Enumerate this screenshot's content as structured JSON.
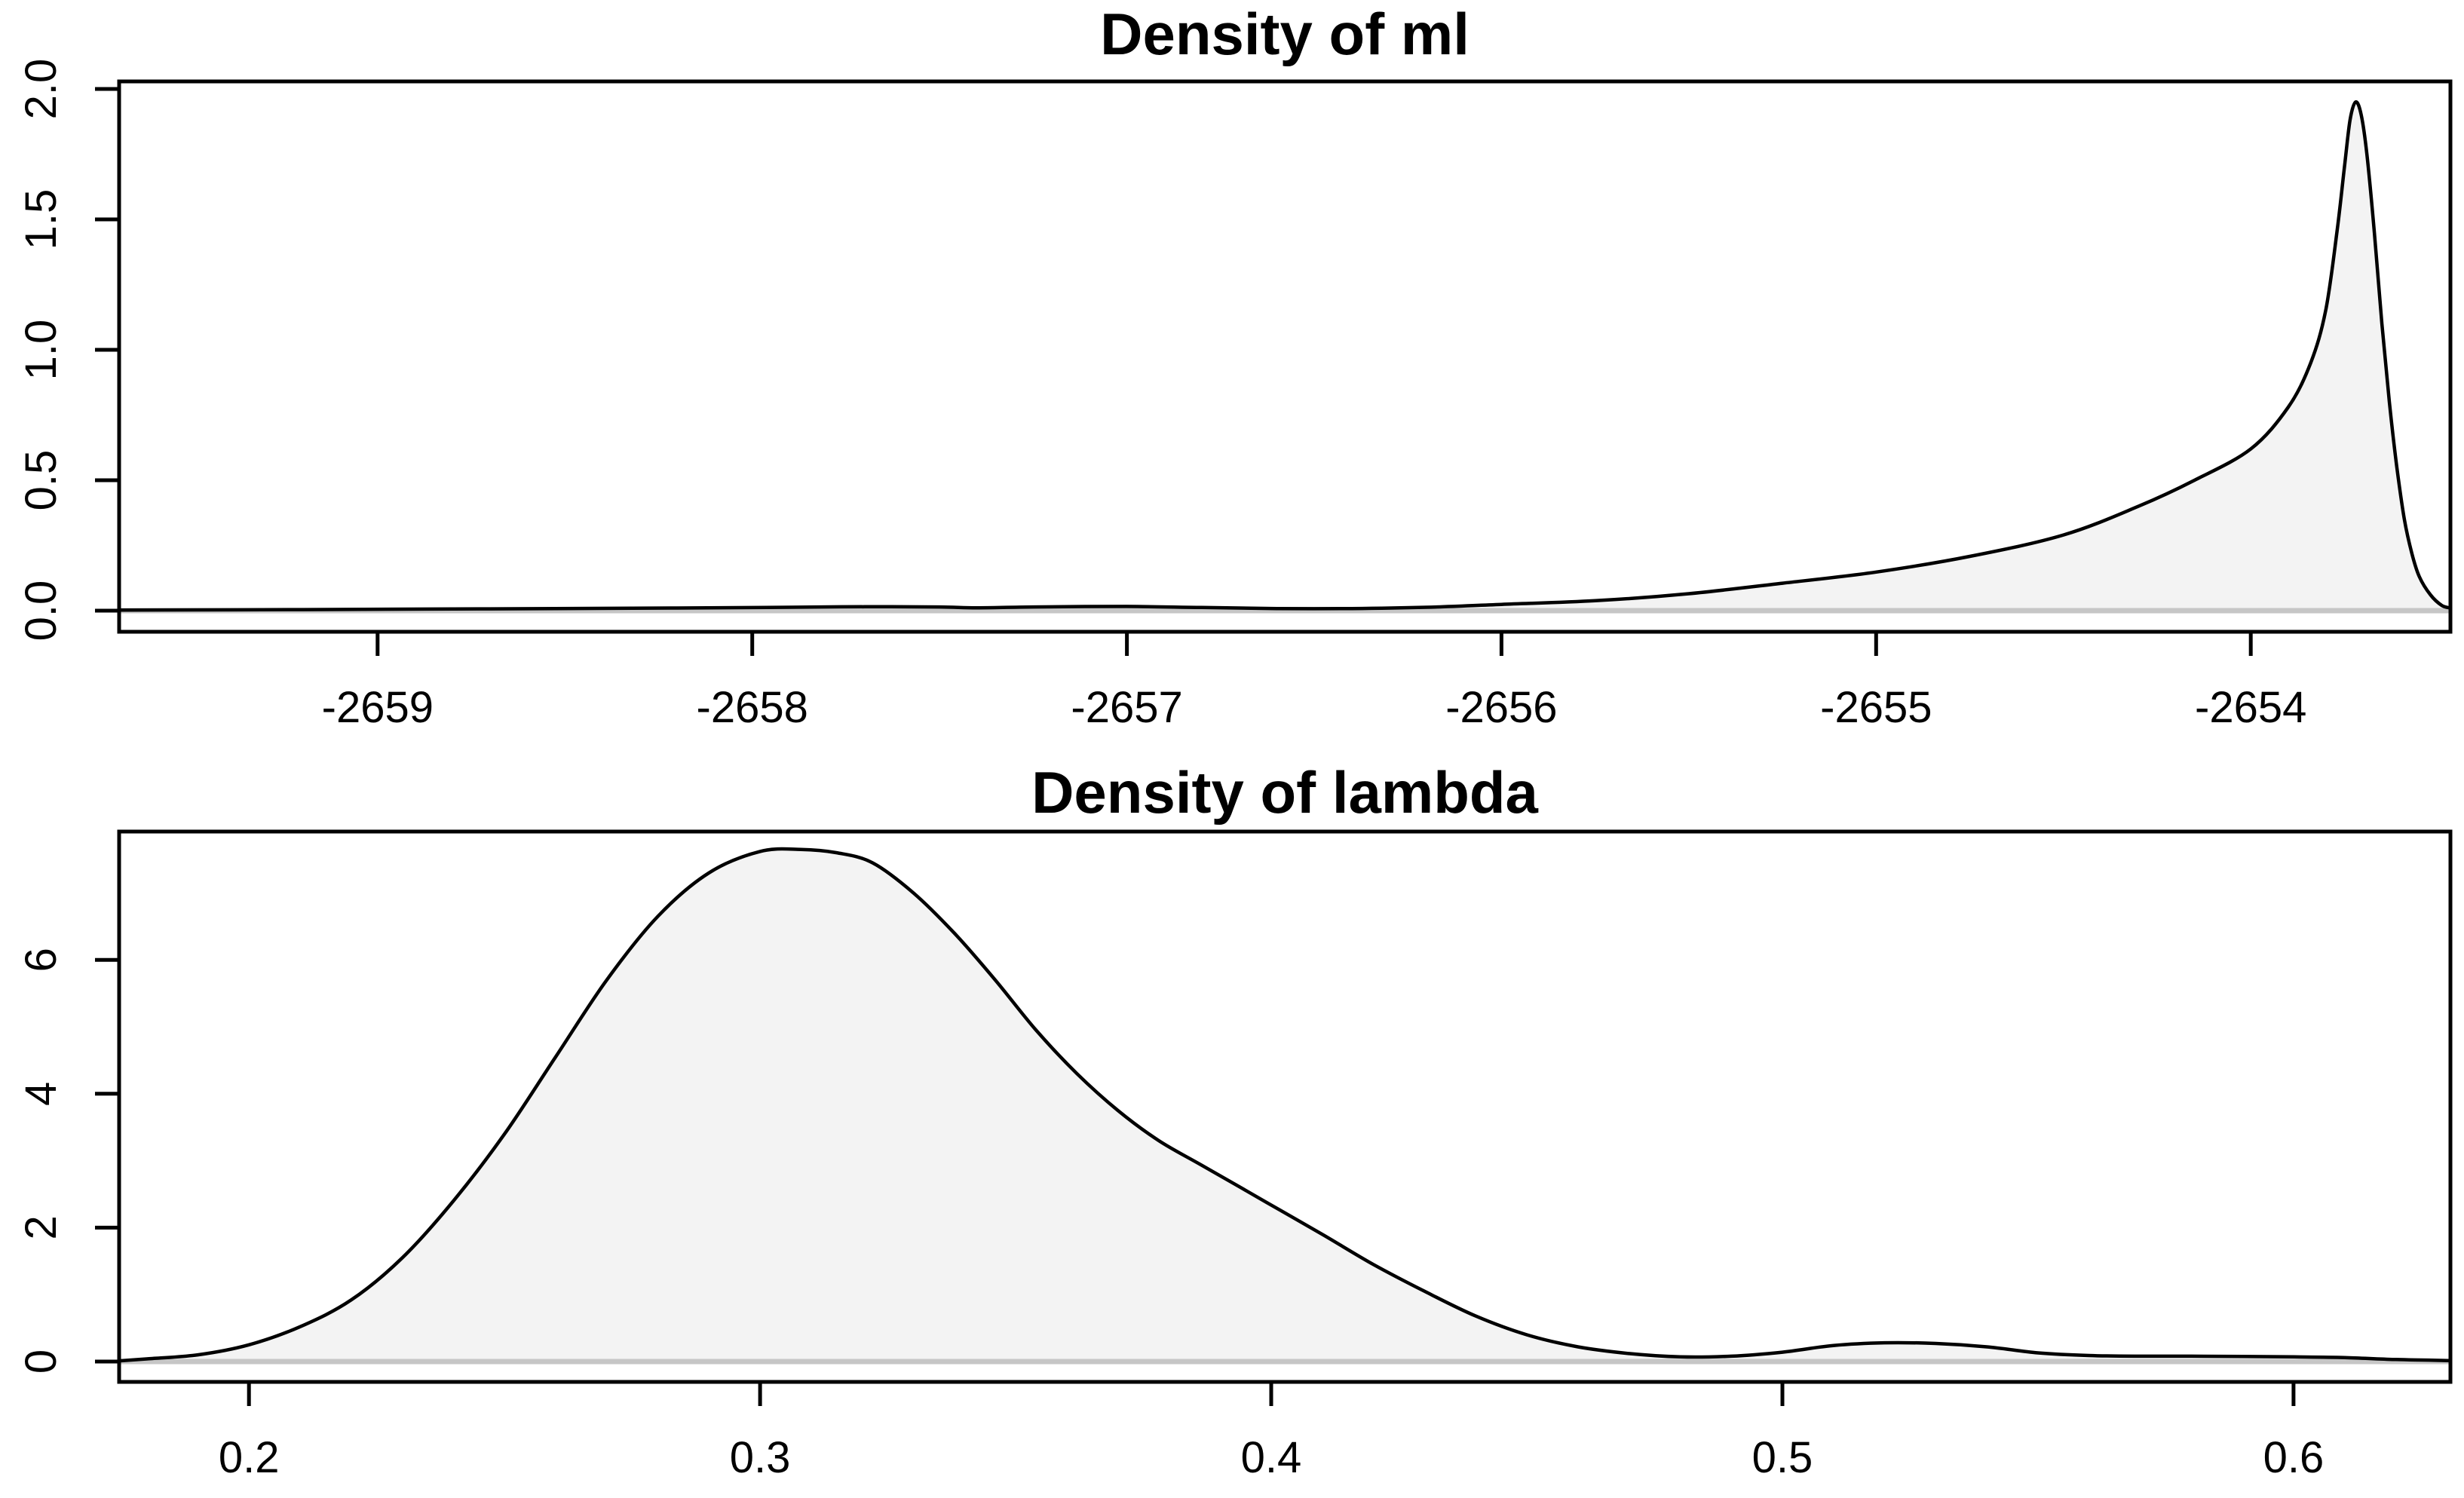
{
  "page": {
    "background": "#ffffff"
  },
  "chart_data": [
    {
      "type": "area",
      "kind": "kernel-density-curve",
      "title": "Density of ml",
      "xlabel": "",
      "ylabel": "",
      "grid": false,
      "legend": null,
      "line_color": "#000000",
      "fill_color": "#f3f3f3",
      "zero_line_color": "#c6c6c6",
      "box_color": "#000000",
      "xlim": [
        -2659.69,
        -2653.467
      ],
      "ylim": [
        -0.081,
        2.029
      ],
      "x_tick_values": [
        -2659,
        -2658,
        -2657,
        -2656,
        -2655,
        -2654
      ],
      "x_tick_labels": [
        "-2659",
        "-2658",
        "-2657",
        "-2656",
        "-2655",
        "-2654"
      ],
      "y_tick_values": [
        0,
        0.5,
        1.0,
        1.5,
        2.0
      ],
      "y_tick_labels": [
        "0.0",
        "0.5",
        "1.0",
        "1.5",
        "2.0"
      ],
      "series": [
        {
          "name": "density of ml",
          "peak": {
            "x": -2653.72,
            "y": 1.95
          },
          "x": [
            -2659.69,
            -2659.2,
            -2658.7,
            -2658.2,
            -2657.9,
            -2657.7,
            -2657.5,
            -2657.4,
            -2657.25,
            -2657.0,
            -2656.8,
            -2656.6,
            -2656.4,
            -2656.2,
            -2656.0,
            -2655.75,
            -2655.5,
            -2655.25,
            -2655.0,
            -2654.75,
            -2654.5,
            -2654.3,
            -2654.15,
            -2654.0,
            -2653.9,
            -2653.84,
            -2653.8,
            -2653.77,
            -2653.75,
            -2653.735,
            -2653.72,
            -2653.705,
            -2653.69,
            -2653.67,
            -2653.65,
            -2653.63,
            -2653.61,
            -2653.59,
            -2653.57,
            -2653.55,
            -2653.52,
            -2653.49,
            -2653.467
          ],
          "y": [
            0.002,
            0.004,
            0.007,
            0.01,
            0.013,
            0.015,
            0.014,
            0.011,
            0.014,
            0.016,
            0.012,
            0.008,
            0.008,
            0.013,
            0.024,
            0.038,
            0.065,
            0.105,
            0.148,
            0.208,
            0.29,
            0.4,
            0.5,
            0.62,
            0.78,
            0.95,
            1.15,
            1.45,
            1.7,
            1.88,
            1.95,
            1.9,
            1.75,
            1.45,
            1.1,
            0.8,
            0.55,
            0.35,
            0.22,
            0.13,
            0.06,
            0.02,
            0.01
          ]
        }
      ]
    },
    {
      "type": "area",
      "kind": "kernel-density-curve",
      "title": "Density of lambda",
      "xlabel": "",
      "ylabel": "",
      "grid": false,
      "legend": null,
      "line_color": "#000000",
      "fill_color": "#f3f3f3",
      "zero_line_color": "#c6c6c6",
      "box_color": "#000000",
      "xlim": [
        0.1746,
        0.6307
      ],
      "ylim": [
        -0.304,
        7.917
      ],
      "x_tick_values": [
        0.2,
        0.3,
        0.4,
        0.5,
        0.6
      ],
      "x_tick_labels": [
        "0.2",
        "0.3",
        "0.4",
        "0.5",
        "0.6"
      ],
      "y_tick_values": [
        0,
        2,
        4,
        6
      ],
      "y_tick_labels": [
        "0",
        "2",
        "4",
        "6"
      ],
      "series": [
        {
          "name": "density of lambda",
          "peak": {
            "x": 0.308,
            "y": 7.65
          },
          "secondary_bump": {
            "x": 0.52,
            "y": 0.28
          },
          "x": [
            0.1746,
            0.18,
            0.19,
            0.2,
            0.21,
            0.22,
            0.23,
            0.24,
            0.25,
            0.26,
            0.27,
            0.28,
            0.29,
            0.3,
            0.308,
            0.315,
            0.322,
            0.33,
            0.338,
            0.346,
            0.354,
            0.362,
            0.37,
            0.378,
            0.386,
            0.394,
            0.402,
            0.41,
            0.42,
            0.43,
            0.44,
            0.45,
            0.46,
            0.47,
            0.48,
            0.49,
            0.5,
            0.51,
            0.52,
            0.53,
            0.54,
            0.55,
            0.56,
            0.57,
            0.58,
            0.6,
            0.61,
            0.62,
            0.6307
          ],
          "y": [
            0.01,
            0.04,
            0.1,
            0.25,
            0.52,
            0.92,
            1.55,
            2.4,
            3.4,
            4.55,
            5.7,
            6.65,
            7.3,
            7.62,
            7.65,
            7.6,
            7.45,
            7.0,
            6.4,
            5.7,
            4.95,
            4.3,
            3.75,
            3.3,
            2.95,
            2.6,
            2.25,
            1.9,
            1.45,
            1.05,
            0.68,
            0.4,
            0.22,
            0.12,
            0.07,
            0.08,
            0.14,
            0.24,
            0.28,
            0.27,
            0.22,
            0.13,
            0.09,
            0.08,
            0.08,
            0.07,
            0.06,
            0.03,
            0.015
          ]
        }
      ]
    }
  ]
}
